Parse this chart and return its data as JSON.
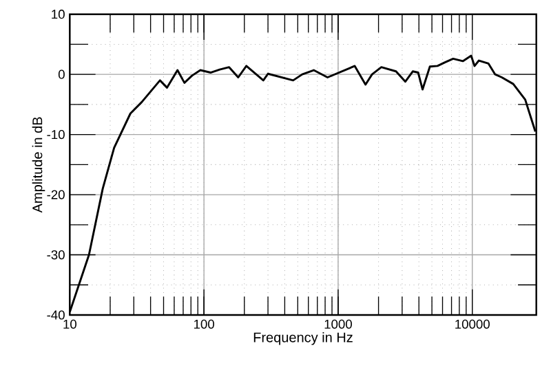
{
  "chart_data": {
    "type": "line",
    "xlabel": "Frequency in Hz",
    "ylabel": "Amplitude in dB",
    "log": "x",
    "grid": true,
    "xlim": [
      10,
      30000
    ],
    "ylim": [
      -40,
      10
    ],
    "xticks": [
      10,
      100,
      1000,
      10000
    ],
    "yticks": [
      -40,
      -30,
      -20,
      -10,
      0,
      10
    ],
    "series": [
      {
        "color": "#000000",
        "x": [
          10,
          13.9,
          17.6,
          21.4,
          28.3,
          34.4,
          47,
          53,
          63.5,
          71.5,
          81.6,
          94,
          112,
          131,
          154,
          180,
          207,
          237,
          277,
          300,
          462,
          540,
          658,
          834,
          1330,
          1600,
          1790,
          2100,
          2700,
          3170,
          3600,
          3950,
          4260,
          4830,
          5500,
          6260,
          7200,
          8500,
          9800,
          10400,
          11200,
          13200,
          14800,
          16600,
          20200,
          24800,
          29500
        ],
        "values": [
          -39.5,
          -30,
          -19,
          -12.2,
          -6.5,
          -4.6,
          -1,
          -2.2,
          0.7,
          -1.4,
          -0.2,
          0.7,
          0.3,
          0.8,
          1.2,
          -0.5,
          1.4,
          0.3,
          -1,
          0.1,
          -1,
          0,
          0.7,
          -0.5,
          1.4,
          -1.7,
          0,
          1.2,
          0.5,
          -1.2,
          0.5,
          0.3,
          -2.5,
          1.3,
          1.4,
          2,
          2.6,
          2.2,
          3.1,
          1.4,
          2.3,
          1.8,
          0,
          -0.5,
          -1.6,
          -4.2,
          -9.5
        ]
      }
    ]
  }
}
